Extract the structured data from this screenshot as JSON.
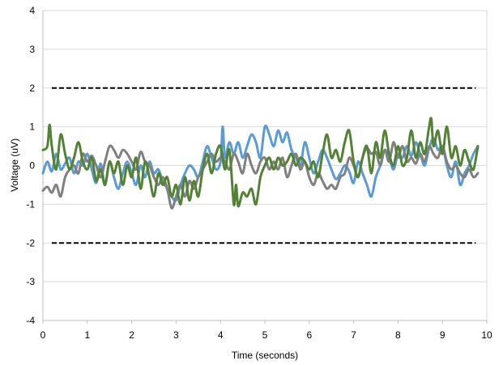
{
  "chart_data": {
    "type": "line",
    "title": "",
    "xlabel": "Time (seconds)",
    "ylabel": "Voltage (uV)",
    "xlim": [
      0,
      10
    ],
    "ylim": [
      -4,
      4
    ],
    "xticks": [
      0,
      1,
      2,
      3,
      4,
      5,
      6,
      7,
      8,
      9,
      10
    ],
    "yticks": [
      -4,
      -3,
      -2,
      -1,
      0,
      1,
      2,
      3,
      4
    ],
    "grid": true,
    "legend": "none",
    "threshold_lines": [
      {
        "y": 2,
        "x_range": [
          0.2,
          9.75
        ],
        "style": "dashed",
        "color": "#000000"
      },
      {
        "y": -2,
        "x_range": [
          0.2,
          9.75
        ],
        "style": "dashed",
        "color": "#000000"
      }
    ],
    "series": [
      {
        "color": "#5B9BD5",
        "points": [
          [
            0.0,
            -0.2
          ],
          [
            0.1,
            0.1
          ],
          [
            0.2,
            -0.15
          ],
          [
            0.3,
            0.3
          ],
          [
            0.4,
            -0.1
          ],
          [
            0.5,
            0.05
          ],
          [
            0.6,
            0.2
          ],
          [
            0.7,
            -0.2
          ],
          [
            0.8,
            0.1
          ],
          [
            0.9,
            0.0
          ],
          [
            1.0,
            0.3
          ],
          [
            1.1,
            -0.1
          ],
          [
            1.2,
            -0.45
          ],
          [
            1.3,
            0.05
          ],
          [
            1.4,
            -0.5
          ],
          [
            1.5,
            0.1
          ],
          [
            1.6,
            -0.3
          ],
          [
            1.7,
            -0.6
          ],
          [
            1.8,
            -0.2
          ],
          [
            1.9,
            0.1
          ],
          [
            2.0,
            -0.2
          ],
          [
            2.1,
            -0.5
          ],
          [
            2.2,
            0.0
          ],
          [
            2.3,
            -0.3
          ],
          [
            2.4,
            0.1
          ],
          [
            2.5,
            -0.2
          ],
          [
            2.6,
            -0.1
          ],
          [
            2.7,
            -0.4
          ],
          [
            2.8,
            -0.6
          ],
          [
            2.9,
            -0.8
          ],
          [
            3.0,
            -0.9
          ],
          [
            3.1,
            -0.5
          ],
          [
            3.2,
            -0.2
          ],
          [
            3.3,
            0.0
          ],
          [
            3.4,
            -0.1
          ],
          [
            3.5,
            -0.3
          ],
          [
            3.6,
            0.1
          ],
          [
            3.7,
            0.5
          ],
          [
            3.8,
            0.2
          ],
          [
            3.9,
            -0.1
          ],
          [
            4.0,
            0.1
          ],
          [
            4.05,
            1.0
          ],
          [
            4.1,
            0.2
          ],
          [
            4.2,
            0.6
          ],
          [
            4.3,
            0.3
          ],
          [
            4.4,
            0.6
          ],
          [
            4.5,
            0.2
          ],
          [
            4.6,
            0.5
          ],
          [
            4.7,
            0.8
          ],
          [
            4.8,
            0.6
          ],
          [
            4.9,
            0.2
          ],
          [
            5.0,
            1.0
          ],
          [
            5.1,
            0.8
          ],
          [
            5.2,
            0.5
          ],
          [
            5.3,
            0.9
          ],
          [
            5.4,
            0.6
          ],
          [
            5.5,
            0.85
          ],
          [
            5.6,
            0.4
          ],
          [
            5.7,
            0.2
          ],
          [
            5.8,
            0.0
          ],
          [
            5.9,
            0.6
          ],
          [
            6.0,
            0.2
          ],
          [
            6.1,
            -0.2
          ],
          [
            6.2,
            0.1
          ],
          [
            6.3,
            0.4
          ],
          [
            6.4,
            0.2
          ],
          [
            6.5,
            -0.1
          ],
          [
            6.6,
            -0.35
          ],
          [
            6.7,
            -0.2
          ],
          [
            6.8,
            0.0
          ],
          [
            6.9,
            -0.15
          ],
          [
            7.0,
            -0.45
          ],
          [
            7.1,
            0.1
          ],
          [
            7.2,
            -0.2
          ],
          [
            7.3,
            -0.5
          ],
          [
            7.4,
            -0.8
          ],
          [
            7.5,
            -0.3
          ],
          [
            7.6,
            0.0
          ],
          [
            7.7,
            0.4
          ],
          [
            7.8,
            0.2
          ],
          [
            7.9,
            -0.1
          ],
          [
            8.0,
            0.3
          ],
          [
            8.1,
            0.2
          ],
          [
            8.2,
            0.5
          ],
          [
            8.3,
            0.25
          ],
          [
            8.4,
            0.6
          ],
          [
            8.5,
            0.3
          ],
          [
            8.6,
            0.0
          ],
          [
            8.7,
            0.45
          ],
          [
            8.8,
            0.7
          ],
          [
            8.9,
            0.4
          ],
          [
            9.0,
            0.5
          ],
          [
            9.1,
            0.0
          ],
          [
            9.2,
            -0.3
          ],
          [
            9.3,
            0.1
          ],
          [
            9.4,
            -0.5
          ],
          [
            9.5,
            -0.2
          ],
          [
            9.6,
            0.0
          ],
          [
            9.7,
            0.3
          ],
          [
            9.8,
            0.5
          ]
        ]
      },
      {
        "color": "#808080",
        "points": [
          [
            0.0,
            -0.65
          ],
          [
            0.1,
            -0.55
          ],
          [
            0.2,
            -0.7
          ],
          [
            0.3,
            -0.5
          ],
          [
            0.4,
            -0.8
          ],
          [
            0.5,
            -0.3
          ],
          [
            0.6,
            -0.1
          ],
          [
            0.7,
            0.0
          ],
          [
            0.8,
            -0.2
          ],
          [
            0.9,
            0.3
          ],
          [
            1.0,
            0.1
          ],
          [
            1.1,
            0.25
          ],
          [
            1.2,
            0.0
          ],
          [
            1.3,
            -0.3
          ],
          [
            1.4,
            0.1
          ],
          [
            1.5,
            0.5
          ],
          [
            1.6,
            0.4
          ],
          [
            1.7,
            0.2
          ],
          [
            1.8,
            0.4
          ],
          [
            1.9,
            0.3
          ],
          [
            2.0,
            0.1
          ],
          [
            2.1,
            -0.1
          ],
          [
            2.2,
            0.35
          ],
          [
            2.3,
            0.1
          ],
          [
            2.4,
            0.0
          ],
          [
            2.5,
            -0.3
          ],
          [
            2.6,
            -0.5
          ],
          [
            2.7,
            -0.3
          ],
          [
            2.8,
            -0.6
          ],
          [
            2.9,
            -1.1
          ],
          [
            3.0,
            -0.8
          ],
          [
            3.1,
            -0.5
          ],
          [
            3.2,
            -0.8
          ],
          [
            3.3,
            -0.4
          ],
          [
            3.4,
            -0.6
          ],
          [
            3.5,
            -0.3
          ],
          [
            3.6,
            -0.1
          ],
          [
            3.7,
            0.1
          ],
          [
            3.8,
            0.3
          ],
          [
            3.9,
            0.1
          ],
          [
            4.0,
            0.2
          ],
          [
            4.1,
            0.1
          ],
          [
            4.2,
            -0.1
          ],
          [
            4.3,
            0.3
          ],
          [
            4.4,
            0.1
          ],
          [
            4.5,
            -0.2
          ],
          [
            4.6,
            0.3
          ],
          [
            4.7,
            0.0
          ],
          [
            4.8,
            -0.2
          ],
          [
            4.9,
            0.1
          ],
          [
            5.0,
            0.2
          ],
          [
            5.1,
            -0.1
          ],
          [
            5.2,
            0.1
          ],
          [
            5.3,
            -0.1
          ],
          [
            5.4,
            0.2
          ],
          [
            5.5,
            -0.3
          ],
          [
            5.6,
            0.0
          ],
          [
            5.7,
            0.3
          ],
          [
            5.8,
            -0.1
          ],
          [
            5.9,
            0.1
          ],
          [
            6.0,
            -0.3
          ],
          [
            6.1,
            -0.5
          ],
          [
            6.2,
            -0.2
          ],
          [
            6.3,
            -0.4
          ],
          [
            6.4,
            -0.6
          ],
          [
            6.5,
            -0.5
          ],
          [
            6.6,
            -0.6
          ],
          [
            6.7,
            -0.3
          ],
          [
            6.8,
            -0.2
          ],
          [
            6.9,
            0.2
          ],
          [
            7.0,
            0.0
          ],
          [
            7.1,
            -0.3
          ],
          [
            7.2,
            0.2
          ],
          [
            7.3,
            0.45
          ],
          [
            7.4,
            0.3
          ],
          [
            7.5,
            0.35
          ],
          [
            7.6,
            0.0
          ],
          [
            7.7,
            0.4
          ],
          [
            7.8,
            0.1
          ],
          [
            7.9,
            0.6
          ],
          [
            8.0,
            0.2
          ],
          [
            8.1,
            0.5
          ],
          [
            8.2,
            0.1
          ],
          [
            8.3,
            0.2
          ],
          [
            8.4,
            0.05
          ],
          [
            8.5,
            0.3
          ],
          [
            8.6,
            0.1
          ],
          [
            8.7,
            0.5
          ],
          [
            8.8,
            0.3
          ],
          [
            8.9,
            0.2
          ],
          [
            9.0,
            0.5
          ],
          [
            9.1,
            0.1
          ],
          [
            9.2,
            -0.1
          ],
          [
            9.3,
            0.0
          ],
          [
            9.4,
            -0.2
          ],
          [
            9.5,
            -0.3
          ],
          [
            9.6,
            -0.1
          ],
          [
            9.7,
            -0.3
          ],
          [
            9.8,
            -0.2
          ]
        ]
      },
      {
        "color": "#548235",
        "points": [
          [
            0.0,
            0.4
          ],
          [
            0.1,
            0.5
          ],
          [
            0.15,
            1.05
          ],
          [
            0.2,
            0.5
          ],
          [
            0.3,
            -0.1
          ],
          [
            0.4,
            0.8
          ],
          [
            0.5,
            0.3
          ],
          [
            0.6,
            -0.1
          ],
          [
            0.7,
            0.2
          ],
          [
            0.8,
            0.6
          ],
          [
            0.9,
            0.1
          ],
          [
            1.0,
            -0.1
          ],
          [
            1.1,
            0.2
          ],
          [
            1.2,
            -0.4
          ],
          [
            1.3,
            -0.1
          ],
          [
            1.4,
            -0.5
          ],
          [
            1.5,
            0.1
          ],
          [
            1.6,
            -0.2
          ],
          [
            1.7,
            0.1
          ],
          [
            1.8,
            -0.5
          ],
          [
            1.9,
            0.0
          ],
          [
            2.0,
            -0.3
          ],
          [
            2.1,
            0.2
          ],
          [
            2.2,
            -0.6
          ],
          [
            2.3,
            0.1
          ],
          [
            2.4,
            -0.3
          ],
          [
            2.5,
            -0.8
          ],
          [
            2.6,
            -0.2
          ],
          [
            2.7,
            -0.5
          ],
          [
            2.8,
            -0.3
          ],
          [
            2.9,
            -0.8
          ],
          [
            3.0,
            -0.5
          ],
          [
            3.1,
            -1.0
          ],
          [
            3.2,
            -0.3
          ],
          [
            3.3,
            -0.9
          ],
          [
            3.4,
            -0.4
          ],
          [
            3.5,
            -0.8
          ],
          [
            3.6,
            -0.1
          ],
          [
            3.7,
            0.3
          ],
          [
            3.8,
            -0.2
          ],
          [
            3.9,
            0.3
          ],
          [
            4.0,
            0.5
          ],
          [
            4.1,
            -0.1
          ],
          [
            4.2,
            0.4
          ],
          [
            4.3,
            -1.0
          ],
          [
            4.35,
            -0.5
          ],
          [
            4.4,
            -1.05
          ],
          [
            4.5,
            -0.7
          ],
          [
            4.6,
            -0.8
          ],
          [
            4.7,
            -0.6
          ],
          [
            4.8,
            -1.0
          ],
          [
            4.9,
            -0.3
          ],
          [
            5.0,
            0.0
          ],
          [
            5.1,
            0.2
          ],
          [
            5.2,
            -0.1
          ],
          [
            5.3,
            0.2
          ],
          [
            5.4,
            0.0
          ],
          [
            5.5,
            0.1
          ],
          [
            5.6,
            0.3
          ],
          [
            5.7,
            0.0
          ],
          [
            5.8,
            0.2
          ],
          [
            5.9,
            0.1
          ],
          [
            6.0,
            -0.1
          ],
          [
            6.1,
            0.1
          ],
          [
            6.2,
            -0.3
          ],
          [
            6.3,
            0.3
          ],
          [
            6.4,
            0.8
          ],
          [
            6.5,
            0.2
          ],
          [
            6.6,
            0.4
          ],
          [
            6.7,
            0.1
          ],
          [
            6.8,
            0.6
          ],
          [
            6.9,
            0.9
          ],
          [
            7.0,
            0.1
          ],
          [
            7.1,
            -0.3
          ],
          [
            7.2,
            0.2
          ],
          [
            7.3,
            0.5
          ],
          [
            7.4,
            -0.2
          ],
          [
            7.5,
            0.6
          ],
          [
            7.6,
            0.2
          ],
          [
            7.7,
            0.9
          ],
          [
            7.8,
            0.3
          ],
          [
            7.9,
            0.0
          ],
          [
            8.0,
            0.5
          ],
          [
            8.1,
            0.0
          ],
          [
            8.2,
            0.2
          ],
          [
            8.3,
            0.9
          ],
          [
            8.4,
            0.2
          ],
          [
            8.5,
            0.6
          ],
          [
            8.6,
            0.3
          ],
          [
            8.7,
            1.0
          ],
          [
            8.75,
            1.2
          ],
          [
            8.8,
            0.5
          ],
          [
            8.9,
            0.9
          ],
          [
            9.0,
            0.3
          ],
          [
            9.1,
            1.0
          ],
          [
            9.2,
            0.2
          ],
          [
            9.3,
            0.5
          ],
          [
            9.4,
            0.0
          ],
          [
            9.5,
            0.4
          ],
          [
            9.6,
            0.1
          ],
          [
            9.7,
            -0.1
          ],
          [
            9.8,
            0.5
          ]
        ]
      }
    ]
  }
}
